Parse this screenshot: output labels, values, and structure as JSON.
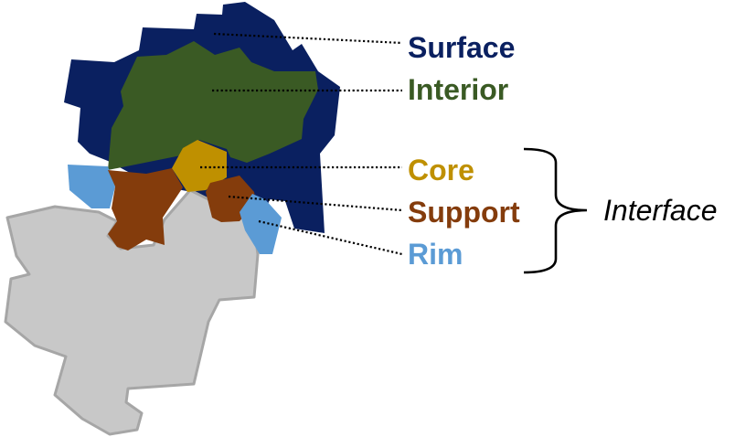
{
  "diagram": {
    "regions": [
      {
        "id": "surface",
        "label": "Surface",
        "color": "#0a2060"
      },
      {
        "id": "interior",
        "label": "Interior",
        "color": "#3a5a24"
      },
      {
        "id": "core",
        "label": "Core",
        "color": "#bf9000"
      },
      {
        "id": "support",
        "label": "Support",
        "color": "#843c0c"
      },
      {
        "id": "rim",
        "label": "Rim",
        "color": "#5b9bd5"
      }
    ],
    "partner_protein": {
      "fill": "#c8c8c8",
      "stroke": "#a6a6a6"
    },
    "bracket_group": {
      "label": "Interface",
      "members": [
        "core",
        "support",
        "rim"
      ]
    }
  }
}
